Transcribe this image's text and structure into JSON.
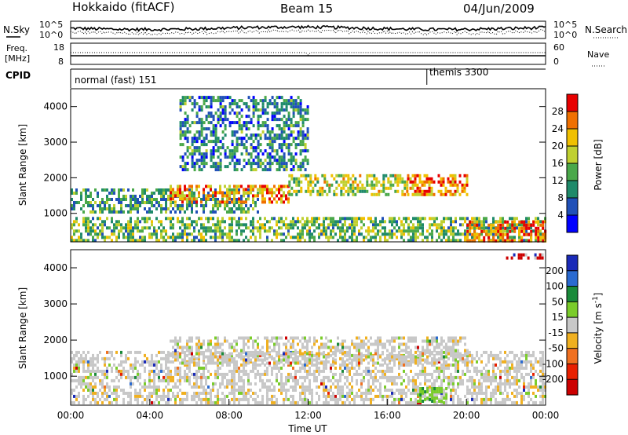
{
  "header": {
    "station": "Hokkaido (fitACF)",
    "beam": "Beam 15",
    "date": "04/Jun/2009"
  },
  "top_panels": {
    "nsky_label": "N.Sky",
    "nsky_ticks": [
      "10^5",
      "10^0"
    ],
    "nsearch_label": "N.Search",
    "nsearch_ticks": [
      "10^5",
      "10^0"
    ],
    "freq_label_1": "Freq.",
    "freq_label_2": "[MHz]",
    "freq_ticks": [
      "18",
      "8"
    ],
    "nave_label": "Nave",
    "nave_ticks": [
      "60",
      "0"
    ],
    "cpid_label": "CPID",
    "cpid_segments": [
      {
        "name": "normal (fast) 151",
        "start_ut": 0.0
      },
      {
        "name": "themis 3300",
        "start_ut": 18.0
      }
    ]
  },
  "chart_data": [
    {
      "type": "heatmap",
      "panel": "power",
      "ylabel": "Slant Range [km]",
      "yticks": [
        "1000",
        "2000",
        "3000",
        "4000"
      ],
      "ylim": [
        200,
        4500
      ],
      "xlim_hours": [
        0,
        24
      ],
      "colorbar_label": "Power [dB]",
      "colorbar_ticks": [
        "4",
        "8",
        "12",
        "16",
        "20",
        "24",
        "28"
      ],
      "colorbar_colors": [
        "#0000ff",
        "#2050b8",
        "#1f8a6a",
        "#4aa84a",
        "#c0d030",
        "#f0c000",
        "#f07000",
        "#e80000"
      ],
      "echo_bands": [
        {
          "t0": 0.0,
          "t1": 24.0,
          "r0": 220,
          "r1": 900,
          "level": 0.45
        },
        {
          "t0": 0.0,
          "t1": 9.5,
          "r0": 1000,
          "r1": 1700,
          "level": 0.35
        },
        {
          "t0": 5.0,
          "t1": 11.0,
          "r0": 1300,
          "r1": 1800,
          "level": 0.75
        },
        {
          "t0": 11.0,
          "t1": 17.0,
          "r0": 1500,
          "r1": 2100,
          "level": 0.55
        },
        {
          "t0": 17.0,
          "t1": 20.0,
          "r0": 1500,
          "r1": 2100,
          "level": 0.8
        },
        {
          "t0": 20.0,
          "t1": 24.0,
          "r0": 250,
          "r1": 800,
          "level": 0.85
        },
        {
          "t0": 5.5,
          "t1": 12.0,
          "r0": 2200,
          "r1": 4300,
          "level": 0.3
        }
      ]
    },
    {
      "type": "heatmap",
      "panel": "velocity",
      "ylabel": "Slant Range [km]",
      "yticks": [
        "1000",
        "2000",
        "3000",
        "4000"
      ],
      "ylim": [
        200,
        4500
      ],
      "xlim_hours": [
        0,
        24
      ],
      "xlabel": "Time UT",
      "xticks": [
        "00:00",
        "04:00",
        "08:00",
        "12:00",
        "16:00",
        "20:00",
        "00:00"
      ],
      "colorbar_label": "Velocity [m s",
      "colorbar_unit_exp": "-1",
      "colorbar_ticks": [
        "200",
        "100",
        "50",
        "15",
        "-15",
        "-50",
        "-100",
        "-200"
      ],
      "colorbar_colors": [
        "#1a2ab8",
        "#2a6ad0",
        "#1a8a3a",
        "#7acc2a",
        "#c8c8c8",
        "#f0b020",
        "#f07020",
        "#e82000",
        "#cc0000"
      ],
      "echo_bands": [
        {
          "t0": 0.0,
          "t1": 24.0,
          "r0": 250,
          "r1": 1700,
          "value": 0
        },
        {
          "t0": 5.0,
          "t1": 20.0,
          "r0": 1400,
          "r1": 2100,
          "value": 0
        },
        {
          "t0": 17.5,
          "t1": 19.0,
          "r0": 300,
          "r1": 700,
          "value": 60
        },
        {
          "t0": 22.0,
          "t1": 24.0,
          "r0": 4300,
          "r1": 4400,
          "value": -200
        }
      ]
    }
  ]
}
